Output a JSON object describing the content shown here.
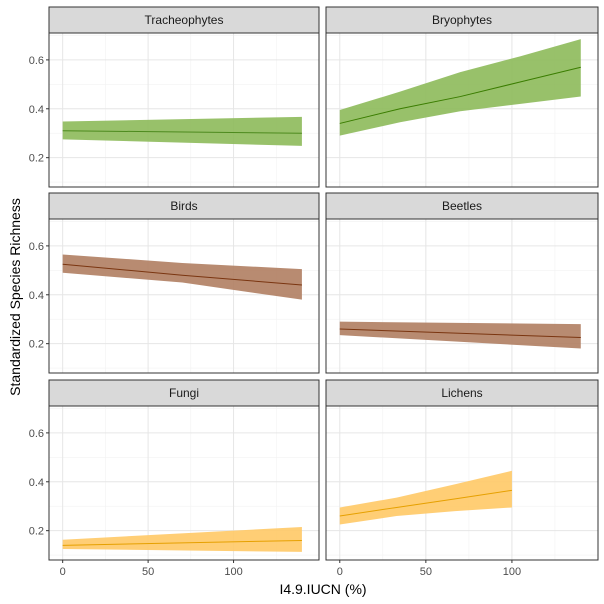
{
  "chart_data": {
    "type": "line",
    "facet_layout": "3 rows x 2 columns",
    "xlabel": "I4.9.IUCN (%)",
    "ylabel": "Standardized Species Richness",
    "xlim": [
      -8,
      150
    ],
    "ylim": [
      0.08,
      0.71
    ],
    "x_ticks": [
      0,
      50,
      100
    ],
    "x_tick_labels": [
      "0",
      "50",
      "100"
    ],
    "y_ticks": [
      0.2,
      0.4,
      0.6
    ],
    "y_tick_labels": [
      "0.2",
      "0.4",
      "0.6"
    ],
    "grid": true,
    "panels": [
      {
        "title": "Tracheophytes",
        "line_color": "#4d8a1e",
        "band_color": "#8dba5a",
        "x": [
          0,
          140
        ],
        "y": [
          0.31,
          0.3
        ],
        "lower": [
          0.275,
          0.248
        ],
        "upper": [
          0.348,
          0.367
        ]
      },
      {
        "title": "Bryophytes",
        "line_color": "#3a7d00",
        "band_color": "#8dba5a",
        "x": [
          0,
          35,
          70,
          105,
          140
        ],
        "y": [
          0.34,
          0.4,
          0.45,
          0.51,
          0.57
        ],
        "lower": [
          0.29,
          0.345,
          0.39,
          0.42,
          0.45
        ],
        "upper": [
          0.395,
          0.47,
          0.55,
          0.615,
          0.685
        ]
      },
      {
        "title": "Birds",
        "line_color": "#7a3510",
        "band_color": "#b07e62",
        "x": [
          0,
          70,
          140
        ],
        "y": [
          0.525,
          0.48,
          0.44
        ],
        "lower": [
          0.49,
          0.45,
          0.38
        ],
        "upper": [
          0.565,
          0.53,
          0.505
        ]
      },
      {
        "title": "Beetles",
        "line_color": "#7a3510",
        "band_color": "#b07e62",
        "x": [
          0,
          140
        ],
        "y": [
          0.26,
          0.225
        ],
        "lower": [
          0.235,
          0.18
        ],
        "upper": [
          0.29,
          0.28
        ]
      },
      {
        "title": "Fungi",
        "line_color": "#e6a000",
        "band_color": "#ffc966",
        "x": [
          0,
          140
        ],
        "y": [
          0.14,
          0.16
        ],
        "lower": [
          0.125,
          0.113
        ],
        "upper": [
          0.163,
          0.215
        ]
      },
      {
        "title": "Lichens",
        "line_color": "#e6a000",
        "band_color": "#ffc966",
        "x": [
          0,
          33,
          67,
          100
        ],
        "y": [
          0.26,
          0.295,
          0.33,
          0.365
        ],
        "lower": [
          0.225,
          0.26,
          0.28,
          0.295
        ],
        "upper": [
          0.295,
          0.335,
          0.39,
          0.445
        ]
      }
    ]
  }
}
